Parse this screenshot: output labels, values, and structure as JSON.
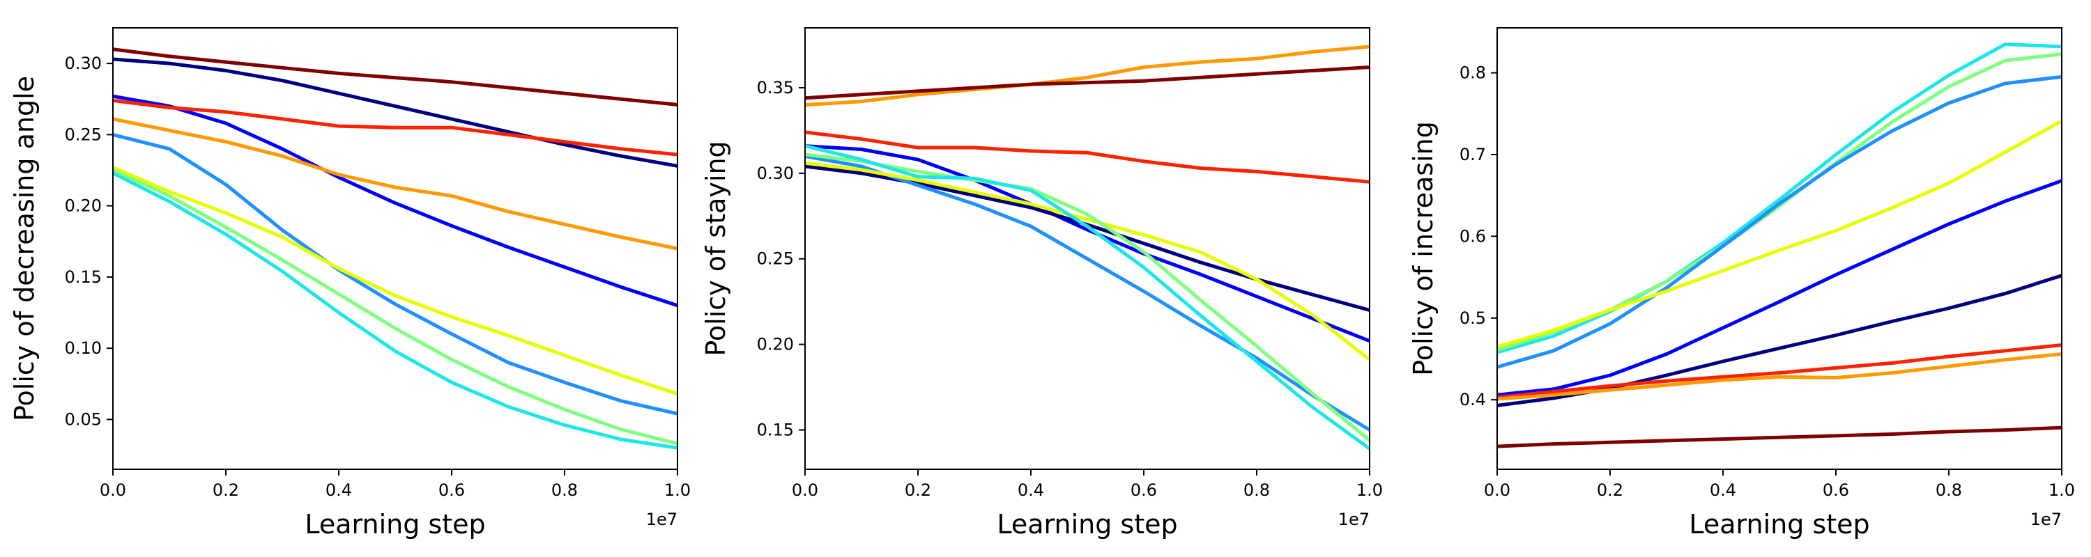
{
  "chart_data": [
    {
      "type": "line",
      "xlabel": "Learning step",
      "ylabel": "Policy of decreasing angle",
      "x_offset_label": "1e7",
      "xlim": [
        0,
        1.0
      ],
      "ylim": [
        0.015,
        0.325
      ],
      "xticks": [
        0.0,
        0.2,
        0.4,
        0.6,
        0.8,
        1.0
      ],
      "xtick_labels": [
        "0.0",
        "0.2",
        "0.4",
        "0.6",
        "0.8",
        "1.0"
      ],
      "yticks": [
        0.05,
        0.1,
        0.15,
        0.2,
        0.25,
        0.3
      ],
      "ytick_labels": [
        "0.05",
        "0.10",
        "0.15",
        "0.20",
        "0.25",
        "0.30"
      ],
      "x": [
        0.0,
        0.1,
        0.2,
        0.3,
        0.4,
        0.5,
        0.6,
        0.7,
        0.8,
        0.9,
        1.0
      ],
      "series": [
        {
          "color": "#7f0000",
          "values": [
            0.31,
            0.305,
            0.301,
            0.297,
            0.293,
            0.29,
            0.287,
            0.283,
            0.279,
            0.275,
            0.271
          ]
        },
        {
          "color": "#000080",
          "values": [
            0.303,
            0.3,
            0.295,
            0.288,
            0.279,
            0.27,
            0.261,
            0.252,
            0.243,
            0.235,
            0.228
          ]
        },
        {
          "color": "#0000ff",
          "values": [
            0.277,
            0.27,
            0.258,
            0.24,
            0.22,
            0.202,
            0.186,
            0.171,
            0.157,
            0.143,
            0.13
          ]
        },
        {
          "color": "#ff2200",
          "values": [
            0.274,
            0.269,
            0.266,
            0.261,
            0.256,
            0.255,
            0.255,
            0.25,
            0.245,
            0.24,
            0.236
          ]
        },
        {
          "color": "#ff9900",
          "values": [
            0.261,
            0.253,
            0.245,
            0.235,
            0.222,
            0.213,
            0.207,
            0.196,
            0.187,
            0.178,
            0.17
          ]
        },
        {
          "color": "#1e90ff",
          "values": [
            0.25,
            0.24,
            0.215,
            0.183,
            0.155,
            0.131,
            0.11,
            0.09,
            0.076,
            0.063,
            0.054
          ]
        },
        {
          "color": "#e6ff00",
          "values": [
            0.227,
            0.21,
            0.195,
            0.178,
            0.156,
            0.137,
            0.122,
            0.109,
            0.095,
            0.081,
            0.068
          ]
        },
        {
          "color": "#7fff7f",
          "values": [
            0.225,
            0.207,
            0.185,
            0.162,
            0.138,
            0.114,
            0.092,
            0.073,
            0.057,
            0.043,
            0.033
          ]
        },
        {
          "color": "#1ee6e6",
          "values": [
            0.223,
            0.203,
            0.18,
            0.154,
            0.125,
            0.098,
            0.076,
            0.059,
            0.046,
            0.036,
            0.03
          ]
        }
      ]
    },
    {
      "type": "line",
      "xlabel": "Learning step",
      "ylabel": "Policy of staying",
      "x_offset_label": "1e7",
      "xlim": [
        0,
        1.0
      ],
      "ylim": [
        0.127,
        0.385
      ],
      "xticks": [
        0.0,
        0.2,
        0.4,
        0.6,
        0.8,
        1.0
      ],
      "xtick_labels": [
        "0.0",
        "0.2",
        "0.4",
        "0.6",
        "0.8",
        "1.0"
      ],
      "yticks": [
        0.15,
        0.2,
        0.25,
        0.3,
        0.35
      ],
      "ytick_labels": [
        "0.15",
        "0.20",
        "0.25",
        "0.30",
        "0.35"
      ],
      "x": [
        0.0,
        0.1,
        0.2,
        0.3,
        0.4,
        0.5,
        0.6,
        0.7,
        0.8,
        0.9,
        1.0
      ],
      "series": [
        {
          "color": "#ff9900",
          "values": [
            0.34,
            0.342,
            0.346,
            0.349,
            0.352,
            0.356,
            0.362,
            0.365,
            0.367,
            0.371,
            0.374
          ]
        },
        {
          "color": "#7f0000",
          "values": [
            0.344,
            0.346,
            0.348,
            0.35,
            0.352,
            0.353,
            0.354,
            0.356,
            0.358,
            0.36,
            0.362
          ]
        },
        {
          "color": "#ff2200",
          "values": [
            0.324,
            0.32,
            0.315,
            0.315,
            0.313,
            0.312,
            0.307,
            0.303,
            0.301,
            0.298,
            0.295
          ]
        },
        {
          "color": "#0000ff",
          "values": [
            0.316,
            0.314,
            0.308,
            0.296,
            0.282,
            0.267,
            0.253,
            0.241,
            0.228,
            0.215,
            0.202
          ]
        },
        {
          "color": "#000080",
          "values": [
            0.304,
            0.3,
            0.294,
            0.287,
            0.28,
            0.27,
            0.259,
            0.248,
            0.238,
            0.229,
            0.22
          ]
        },
        {
          "color": "#1e90ff",
          "values": [
            0.31,
            0.304,
            0.293,
            0.282,
            0.269,
            0.25,
            0.231,
            0.211,
            0.192,
            0.17,
            0.15
          ]
        },
        {
          "color": "#e6ff00",
          "values": [
            0.306,
            0.302,
            0.296,
            0.289,
            0.282,
            0.273,
            0.264,
            0.254,
            0.238,
            0.217,
            0.191
          ]
        },
        {
          "color": "#7fff7f",
          "values": [
            0.311,
            0.307,
            0.301,
            0.296,
            0.291,
            0.276,
            0.254,
            0.226,
            0.199,
            0.171,
            0.144
          ]
        },
        {
          "color": "#1ee6e6",
          "values": [
            0.316,
            0.308,
            0.298,
            0.297,
            0.29,
            0.269,
            0.245,
            0.217,
            0.19,
            0.163,
            0.139
          ]
        }
      ]
    },
    {
      "type": "line",
      "xlabel": "Learning step",
      "ylabel": "Policy of increasing",
      "x_offset_label": "1e7",
      "xlim": [
        0,
        1.0
      ],
      "ylim": [
        0.315,
        0.855
      ],
      "xticks": [
        0.0,
        0.2,
        0.4,
        0.6,
        0.8,
        1.0
      ],
      "xtick_labels": [
        "0.0",
        "0.2",
        "0.4",
        "0.6",
        "0.8",
        "1.0"
      ],
      "yticks": [
        0.4,
        0.5,
        0.6,
        0.7,
        0.8
      ],
      "ytick_labels": [
        "0.4",
        "0.5",
        "0.6",
        "0.7",
        "0.8"
      ],
      "x": [
        0.0,
        0.1,
        0.2,
        0.3,
        0.4,
        0.5,
        0.6,
        0.7,
        0.8,
        0.9,
        1.0
      ],
      "series": [
        {
          "color": "#1ee6e6",
          "values": [
            0.458,
            0.478,
            0.508,
            0.545,
            0.592,
            0.645,
            0.7,
            0.752,
            0.797,
            0.835,
            0.832
          ]
        },
        {
          "color": "#7fff7f",
          "values": [
            0.461,
            0.483,
            0.51,
            0.545,
            0.588,
            0.637,
            0.69,
            0.74,
            0.783,
            0.815,
            0.823
          ]
        },
        {
          "color": "#1e90ff",
          "values": [
            0.44,
            0.46,
            0.493,
            0.537,
            0.588,
            0.64,
            0.688,
            0.729,
            0.763,
            0.787,
            0.795
          ]
        },
        {
          "color": "#e6ff00",
          "values": [
            0.465,
            0.485,
            0.51,
            0.533,
            0.558,
            0.583,
            0.607,
            0.635,
            0.665,
            0.703,
            0.741
          ]
        },
        {
          "color": "#0000ff",
          "values": [
            0.406,
            0.413,
            0.43,
            0.456,
            0.488,
            0.52,
            0.553,
            0.584,
            0.615,
            0.643,
            0.668
          ]
        },
        {
          "color": "#000080",
          "values": [
            0.393,
            0.402,
            0.414,
            0.43,
            0.447,
            0.463,
            0.479,
            0.496,
            0.512,
            0.53,
            0.552
          ]
        },
        {
          "color": "#ff2200",
          "values": [
            0.403,
            0.41,
            0.417,
            0.423,
            0.428,
            0.433,
            0.439,
            0.445,
            0.453,
            0.46,
            0.467
          ]
        },
        {
          "color": "#ff9900",
          "values": [
            0.401,
            0.406,
            0.412,
            0.418,
            0.424,
            0.428,
            0.427,
            0.433,
            0.441,
            0.449,
            0.456
          ]
        },
        {
          "color": "#7f0000",
          "values": [
            0.343,
            0.346,
            0.348,
            0.35,
            0.352,
            0.354,
            0.356,
            0.358,
            0.361,
            0.363,
            0.366
          ]
        }
      ]
    }
  ]
}
